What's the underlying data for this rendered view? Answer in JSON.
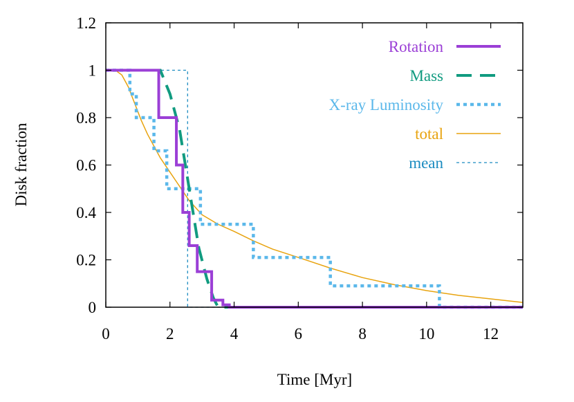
{
  "chart_data": {
    "type": "line",
    "title": "",
    "xlabel": "Time [Myr]",
    "ylabel": "Disk fraction",
    "xlim": [
      0,
      13
    ],
    "ylim": [
      0,
      1.2
    ],
    "xticks": [
      0,
      2,
      4,
      6,
      8,
      10,
      12
    ],
    "yticks": [
      0,
      0.2,
      0.4,
      0.6,
      0.8,
      1,
      1.2
    ],
    "ytick_labels": [
      "0",
      "0.2",
      "0.4",
      "0.6",
      "0.8",
      "1",
      "1.2"
    ],
    "grid": false,
    "legend_position": "top-right",
    "series": [
      {
        "name": "Rotation",
        "color": "#9b3fd6",
        "style": "solid-thick",
        "step": true,
        "x": [
          0,
          1.65,
          1.65,
          2.2,
          2.2,
          2.4,
          2.4,
          2.6,
          2.6,
          2.85,
          2.85,
          3.05,
          3.05,
          3.3,
          3.3,
          3.65,
          3.65,
          3.85,
          3.85,
          13
        ],
        "y": [
          1,
          1,
          0.8,
          0.8,
          0.6,
          0.6,
          0.4,
          0.4,
          0.26,
          0.26,
          0.15,
          0.15,
          0.15,
          0.15,
          0.03,
          0.03,
          0.01,
          0.01,
          0,
          0
        ]
      },
      {
        "name": "Mass",
        "color": "#119b80",
        "style": "dashed-thick",
        "step": false,
        "x": [
          0,
          1.7,
          2.0,
          2.3,
          2.6,
          2.9,
          3.15,
          3.35,
          3.5,
          13
        ],
        "y": [
          1,
          1,
          0.9,
          0.75,
          0.5,
          0.25,
          0.12,
          0.04,
          0,
          0
        ]
      },
      {
        "name": "X-ray Luminosity",
        "color": "#5bb8ea",
        "style": "dotted-thick",
        "step": true,
        "x": [
          0,
          0.75,
          0.75,
          0.95,
          0.95,
          1.5,
          1.5,
          1.9,
          1.9,
          2.1,
          2.1,
          2.95,
          2.95,
          4.6,
          4.6,
          7.0,
          7.0,
          10.4,
          10.4,
          13
        ],
        "y": [
          1,
          1,
          0.9,
          0.9,
          0.8,
          0.8,
          0.66,
          0.66,
          0.5,
          0.5,
          0.5,
          0.5,
          0.35,
          0.35,
          0.21,
          0.21,
          0.09,
          0.09,
          0,
          0
        ]
      },
      {
        "name": "total",
        "color": "#e8a30e",
        "style": "solid-thin",
        "step": false,
        "x": [
          0,
          0.3,
          0.5,
          0.7,
          0.9,
          1.1,
          1.3,
          1.5,
          1.7,
          2.0,
          2.3,
          2.6,
          3.0,
          3.5,
          4.0,
          4.6,
          5.2,
          6.0,
          7.0,
          8.0,
          9.0,
          10.0,
          11.0,
          12.0,
          13.0
        ],
        "y": [
          1,
          1,
          0.98,
          0.93,
          0.86,
          0.79,
          0.73,
          0.68,
          0.63,
          0.57,
          0.51,
          0.45,
          0.39,
          0.35,
          0.32,
          0.28,
          0.245,
          0.21,
          0.165,
          0.125,
          0.095,
          0.07,
          0.05,
          0.035,
          0.02
        ]
      },
      {
        "name": "mean",
        "color": "#1a8bc0",
        "style": "dashed-thin",
        "step": true,
        "x": [
          0,
          2.55,
          2.55,
          13
        ],
        "y": [
          1,
          1,
          0,
          0
        ]
      }
    ]
  }
}
